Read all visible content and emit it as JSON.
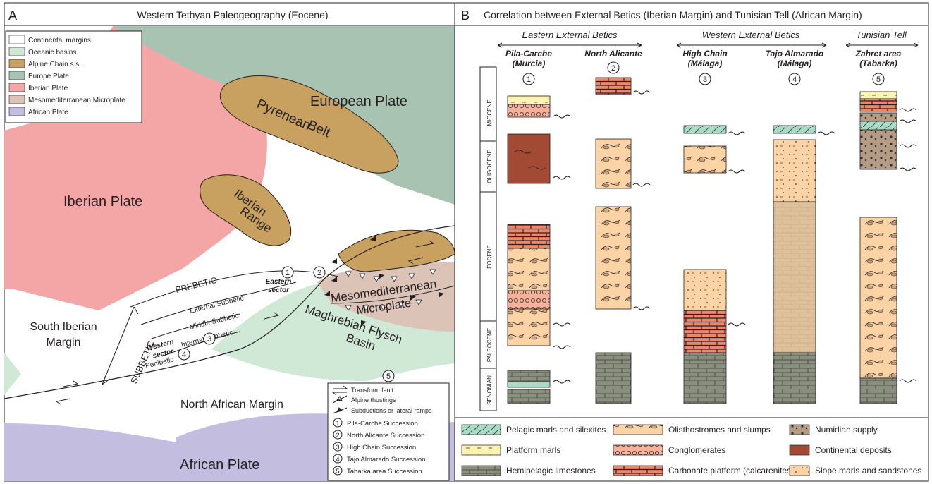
{
  "panel_a": {
    "letter": "A",
    "title": "Western Tethyan Paleogeography  (Eocene)",
    "legend": [
      {
        "label": "Continental margins",
        "color": "#ffffff"
      },
      {
        "label": "Oceanic basins",
        "color": "#cfe9d6"
      },
      {
        "label": "Alpine Chain s.s.",
        "color": "#c8a060"
      },
      {
        "label": "Europe Plate",
        "color": "#a9c3b3"
      },
      {
        "label": "Iberian Plate",
        "color": "#f4a6a6"
      },
      {
        "label": "Mesomediterranean Microplate",
        "color": "#dcc3b8"
      },
      {
        "label": "African Plate",
        "color": "#c3bde0"
      }
    ],
    "labels": {
      "european_plate": "European Plate",
      "pyrenean_belt": [
        "Pyrenean",
        "Belt"
      ],
      "iberian_plate": "Iberian Plate",
      "iberian_range": [
        "Iberian",
        "Range"
      ],
      "prebetic": "PREBETIC",
      "subbetic": "SUBBETIC",
      "external_subbetic": "External Subbetic",
      "middle_subbetic": "Middle Subbetic",
      "internal_subbetic": "Internal Subbetic",
      "penibetic": "Penibetic",
      "eastern_sector": [
        "Eastern",
        "sector"
      ],
      "western_sector": [
        "Western",
        "sector"
      ],
      "mesomediterranean": [
        "Mesomediterranean",
        "Microplate"
      ],
      "maghrebian": [
        "Maghrebian Flysch",
        "Basin"
      ],
      "south_iberian": [
        "South Iberian",
        "Margin"
      ],
      "north_african_margin": "North African Margin",
      "african_plate": "African Plate"
    },
    "circled": [
      "1",
      "2",
      "3",
      "4",
      "5"
    ],
    "key": {
      "transform": "Transform fault",
      "alpine": "Alpine thustings",
      "subduction": "Subductions or lateral ramps",
      "items": [
        "Pila-Carche Succession",
        "North Alicante Succession",
        "High Chain Succession",
        "Tajo Almarado Succession",
        "Tabarka area Succession"
      ]
    }
  },
  "panel_b": {
    "letter": "B",
    "title": "Correlation between External Betics (Iberian Margin) and Tunisian Tell (African Margin)",
    "groups": [
      "Eastern External Betics",
      "Western External Betics",
      "Tunisian Tell"
    ],
    "columns": [
      {
        "name": [
          "Pila-Carche",
          "(Murcia)"
        ],
        "num": "1"
      },
      {
        "name": [
          "North Alicante",
          ""
        ],
        "num": "2"
      },
      {
        "name": [
          "High Chain",
          "(Málaga)"
        ],
        "num": "3"
      },
      {
        "name": [
          "Tajo Almarado",
          "(Málaga)"
        ],
        "num": "4"
      },
      {
        "name": [
          "Zahret area",
          "(Tabarka)"
        ],
        "num": "5"
      }
    ],
    "epochs": [
      "MIOCENE",
      "OLIGOCENE",
      "EOCENE",
      "PALEOCENE",
      "SENONIAN"
    ],
    "legend": [
      "Pelagic marls and silexites",
      "Olisthostromes and slumps",
      "Numidian supply",
      "Platform marls",
      "Conglomerates",
      "Continental deposits",
      "Hemipelagic limestones",
      "Carbonate platform (calcarenites)",
      "Slope marls and sandstones"
    ]
  }
}
